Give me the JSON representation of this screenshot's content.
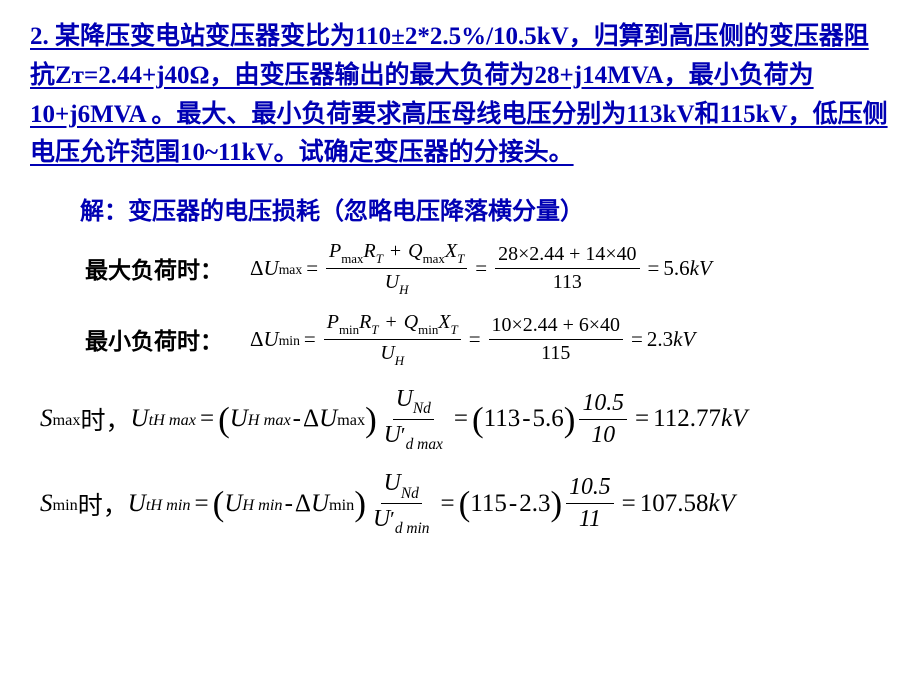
{
  "problem_text": "2. 某降压变电站变压器变比为110±2*2.5%/10.5kV，归算到高压侧的变压器阻抗Zᴛ=2.44+j40Ω，由变压器输出的最大负荷为28+j14MVA，最小负荷为10+j6MVA 。最大、最小负荷要求高压母线电压分别为113kV和115kV，低压侧电压允许范围10~11kV。试确定变压器的分接头。",
  "solution_header": "解：变压器的电压损耗（忽略电压降落横分量）",
  "case_max_label": "最大负荷时：",
  "case_min_label": "最小负荷时：",
  "delta_u": "ΔU",
  "max_sub": "max",
  "min_sub": "min",
  "P": "P",
  "Q": "Q",
  "R": "R",
  "X": "X",
  "T_sub": "T",
  "U_H": "U",
  "H_sub": "H",
  "frac1_num_calc": "28×2.44 + 14×40",
  "frac1_den_calc": "113",
  "result1": "5.6",
  "kv": "kV",
  "frac2_num_calc": "10×2.44 + 6×40",
  "frac2_den_calc": "115",
  "result2": "2.3",
  "S": "S",
  "shi": "时，",
  "U_var": "U",
  "tHmax": "tH max",
  "tHmin": "tH min",
  "Hmax": "H max",
  "Hmin": "H min",
  "Nd": "Nd",
  "dmax": "d max",
  "dmin": "d min",
  "num_113": "113",
  "num_56": "5.6",
  "ratio_top": "10.5",
  "ratio_bot_max": "10",
  "ratio_bot_min": "11",
  "res_max": "112.77",
  "num_115": "115",
  "num_23": "2.3",
  "res_min": "107.58",
  "colors": {
    "problem": "#0000b3",
    "header": "#0000b3",
    "body": "#000000",
    "bg": "#ffffff"
  },
  "fontsize": {
    "problem": 25,
    "header": 24,
    "case_label": 23,
    "formula_small": 21,
    "formula_large": 25
  }
}
